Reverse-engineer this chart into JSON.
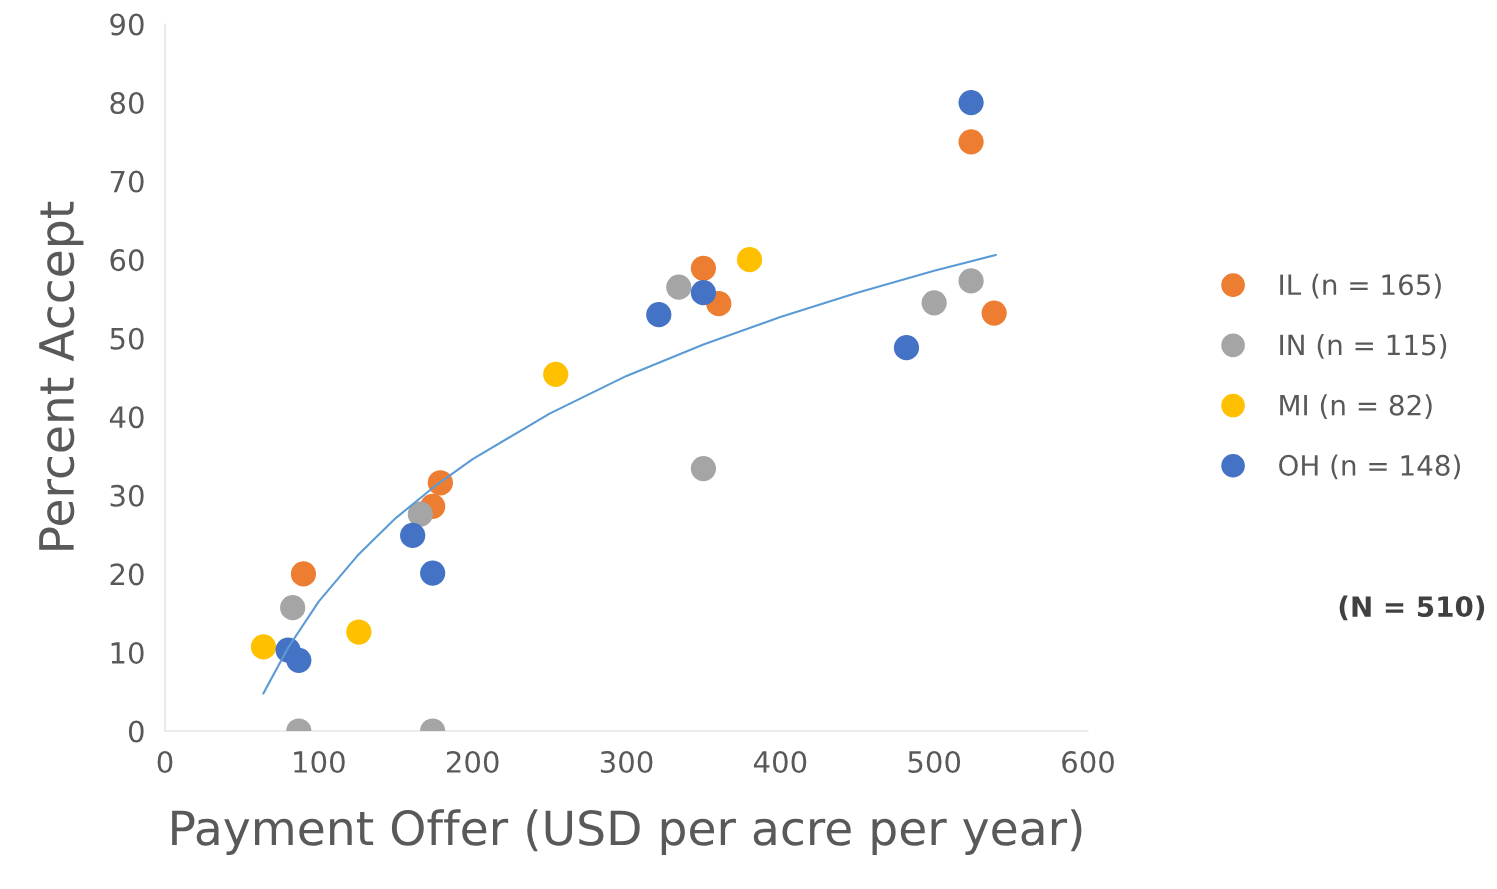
{
  "chart_data": {
    "type": "scatter",
    "xlabel": "Payment Offer (USD per acre per year)",
    "ylabel": "Percent Accept",
    "xlim": [
      0,
      600
    ],
    "xticks": [
      0,
      100,
      200,
      300,
      400,
      500,
      600
    ],
    "ylim": [
      0,
      90
    ],
    "yticks": [
      0,
      10,
      20,
      30,
      40,
      50,
      60,
      70,
      80,
      90
    ],
    "grid": false,
    "legend": "right",
    "marker": "circle",
    "series": [
      {
        "name": "IL (n = 165)",
        "color": "#ed7d31",
        "x": [
          90,
          174,
          179,
          350,
          360,
          524,
          539
        ],
        "values": [
          20,
          28.6,
          31.6,
          58.9,
          54.4,
          75,
          53.2
        ]
      },
      {
        "name": "IN (n = 115)",
        "color": "#a5a5a5",
        "x": [
          83,
          87,
          174,
          166,
          334,
          350,
          500,
          524
        ],
        "values": [
          15.7,
          0,
          0,
          27.6,
          56.5,
          33.4,
          54.5,
          57.3
        ]
      },
      {
        "name": "MI (n = 82)",
        "color": "#ffc000",
        "x": [
          64,
          126,
          254,
          380
        ],
        "values": [
          10.7,
          12.6,
          45.4,
          60
        ]
      },
      {
        "name": "OH (n = 148)",
        "color": "#4472c4",
        "x": [
          80,
          87,
          161,
          174,
          321,
          350,
          482,
          524
        ],
        "values": [
          10.3,
          9,
          24.9,
          20.1,
          53,
          55.8,
          48.8,
          80
        ]
      },
      {
        "type": "line",
        "color": "#5b9bd5",
        "marker": "none",
        "x": [
          64,
          80,
          100,
          125,
          150,
          175,
          200,
          250,
          300,
          350,
          400,
          450,
          500,
          540
        ],
        "values": [
          4.8,
          10.6,
          16.5,
          22.3,
          27.1,
          31.1,
          34.6,
          40.4,
          45.2,
          49.2,
          52.7,
          55.8,
          58.6,
          60.6
        ]
      }
    ],
    "annotations": [
      "(N = 510)"
    ]
  }
}
